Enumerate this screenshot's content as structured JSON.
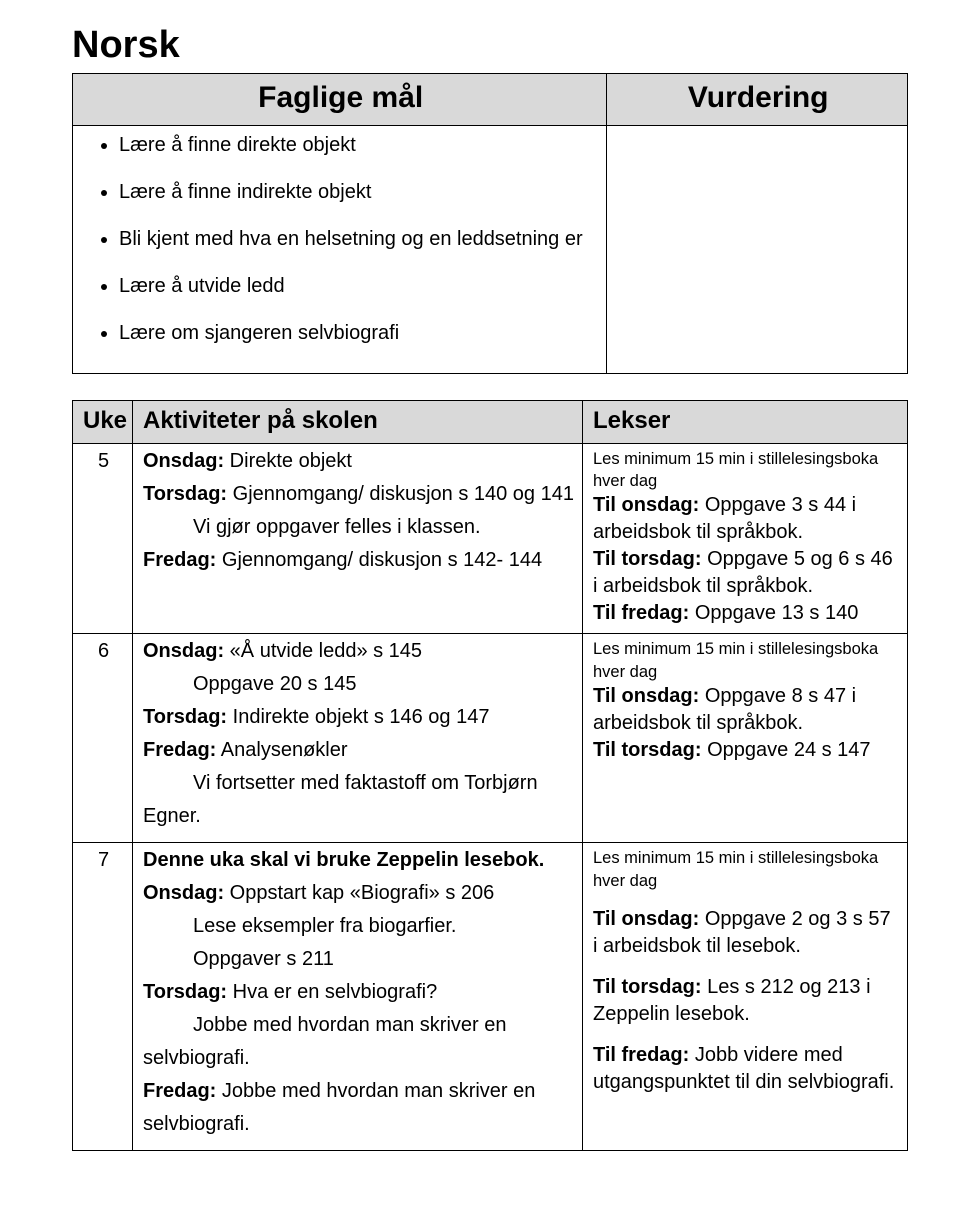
{
  "title": "Norsk",
  "goals_table": {
    "col_widths": {
      "left_pct": 64,
      "right_pct": 36
    },
    "header_bg": "#d9d9d9",
    "left_header": "Faglige mål",
    "right_header": "Vurdering",
    "goals": [
      "Lære å finne direkte objekt",
      "Lære å finne indirekte objekt",
      "Bli kjent med hva en helsetning og en leddsetning er",
      "Lære å utvide ledd",
      "Lære om sjangeren selvbiografi"
    ]
  },
  "plan": {
    "headers": {
      "uke": "Uke",
      "aktiviteter": "Aktiviteter på skolen",
      "lekser": "Lekser"
    },
    "header_bg": "#d9d9d9",
    "rows": [
      {
        "uke": "5",
        "aktiviteter_lines": [
          {
            "b": "Onsdag:",
            "t": " Direkte objekt"
          },
          {
            "b": "Torsdag:",
            "t": " Gjennomgang/ diskusjon s 140 og 141"
          },
          {
            "indent": true,
            "t": "Vi gjør oppgaver felles i klassen."
          },
          {
            "b": "Fredag:",
            "t": " Gjennomgang/ diskusjon s 142- 144"
          }
        ],
        "lekser_small": "Les minimum 15 min i stillelesingsboka hver dag",
        "lekser_lines": [
          {
            "b": "Til onsdag:",
            "t": " Oppgave 3 s 44 i arbeidsbok til språkbok."
          },
          {
            "b": "Til torsdag:",
            "t": " Oppgave 5 og 6 s 46 i arbeidsbok til språkbok."
          },
          {
            "b": "Til fredag:",
            "t": " Oppgave 13 s 140"
          }
        ]
      },
      {
        "uke": "6",
        "aktiviteter_lines": [
          {
            "b": "Onsdag:",
            "t": " «Å utvide ledd» s 145"
          },
          {
            "indent": true,
            "t": "Oppgave 20 s 145"
          },
          {
            "b": "Torsdag:",
            "t": " Indirekte objekt s 146 og 147"
          },
          {
            "b": "Fredag:",
            "t": " Analysenøkler"
          },
          {
            "indent": true,
            "t": "Vi fortsetter med faktastoff om Torbjørn"
          },
          {
            "t": "Egner."
          }
        ],
        "lekser_small": "Les minimum 15 min i stillelesingsboka hver dag",
        "lekser_lines": [
          {
            "b": "Til onsdag:",
            "t": " Oppgave 8 s 47 i arbeidsbok til språkbok."
          },
          {
            "b": "Til torsdag:",
            "t": " Oppgave 24 s 147"
          }
        ]
      },
      {
        "uke": "7",
        "aktiviteter_lines": [
          {
            "ball": "Denne uka skal vi bruke Zeppelin lesebok."
          },
          {
            "b": "Onsdag:",
            "t": " Oppstart kap «Biografi» s 206"
          },
          {
            "indent": true,
            "t": "Lese eksempler fra biogarfier."
          },
          {
            "indent": true,
            "t": "Oppgaver s 211"
          },
          {
            "b": "Torsdag:",
            "t": " Hva er en selvbiografi?"
          },
          {
            "indent": true,
            "t": "Jobbe med hvordan man skriver en"
          },
          {
            "t": "selvbiografi."
          },
          {
            "b": "Fredag:",
            "t": " Jobbe med hvordan man skriver en"
          },
          {
            "t": "selvbiografi."
          }
        ],
        "lekser_small": " Les minimum 15 min i stillelesingsboka hver dag",
        "lekser_lines": [
          {
            "gap": true
          },
          {
            "b": "Til onsdag:",
            "t": " Oppgave 2 og 3 s 57 i arbeidsbok til lesebok."
          },
          {
            "gap": true
          },
          {
            "b": "Til torsdag:",
            "t": " Les s 212 og 213 i Zeppelin lesebok."
          },
          {
            "gap": true
          },
          {
            "b": "Til fredag:",
            "t": " Jobb videre med utgangspunktet til din selvbiografi."
          }
        ]
      }
    ]
  }
}
